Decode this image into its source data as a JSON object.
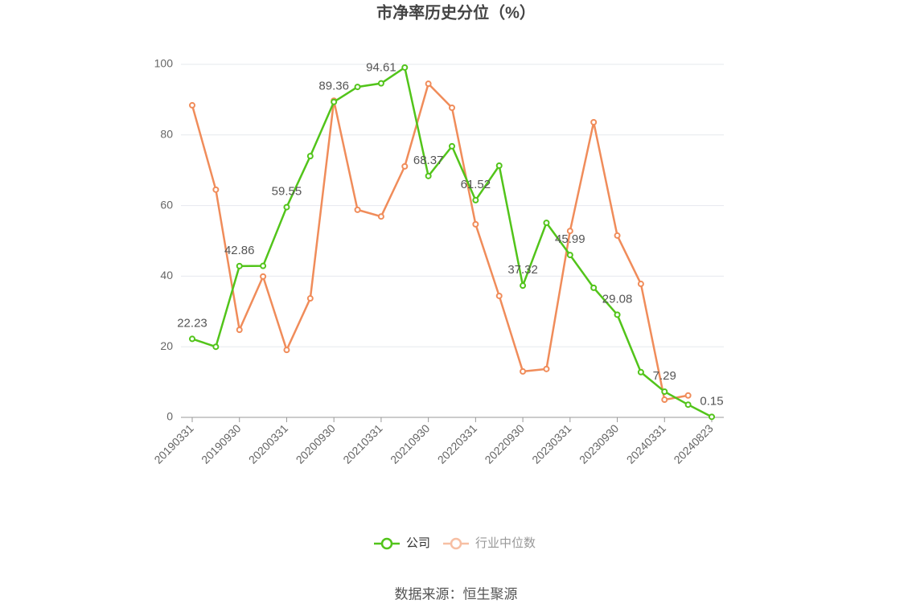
{
  "chart_data": {
    "type": "line",
    "title": "市净率历史分位（%）",
    "categories": [
      "20190331",
      null,
      "20190930",
      null,
      "20200331",
      null,
      "20200930",
      null,
      "20210331",
      null,
      "20210930",
      null,
      "20220331",
      null,
      "20220930",
      null,
      "20230331",
      null,
      "20230930",
      null,
      "20240331",
      null,
      "20240823"
    ],
    "series": [
      {
        "name": "公司",
        "color": "#52c41a",
        "values": [
          22.23,
          20.0,
          42.86,
          42.9,
          59.55,
          74.0,
          89.36,
          93.6,
          94.61,
          99.1,
          68.37,
          76.8,
          61.52,
          71.3,
          37.32,
          55.1,
          45.99,
          36.7,
          29.08,
          12.8,
          7.29,
          3.6,
          0.15
        ]
      },
      {
        "name": "行业中位数",
        "color": "#f08c5a",
        "values": [
          88.4,
          64.5,
          24.8,
          39.9,
          19.1,
          33.7,
          89.7,
          58.8,
          56.9,
          71.1,
          94.5,
          87.7,
          54.7,
          34.4,
          13.0,
          13.7,
          52.8,
          83.6,
          51.5,
          37.8,
          5.0,
          6.2,
          null
        ]
      }
    ],
    "ylim": [
      0,
      100
    ],
    "yticks": [
      0,
      20,
      40,
      60,
      80,
      100
    ],
    "grid": true,
    "source": "数据来源：恒生聚源"
  }
}
